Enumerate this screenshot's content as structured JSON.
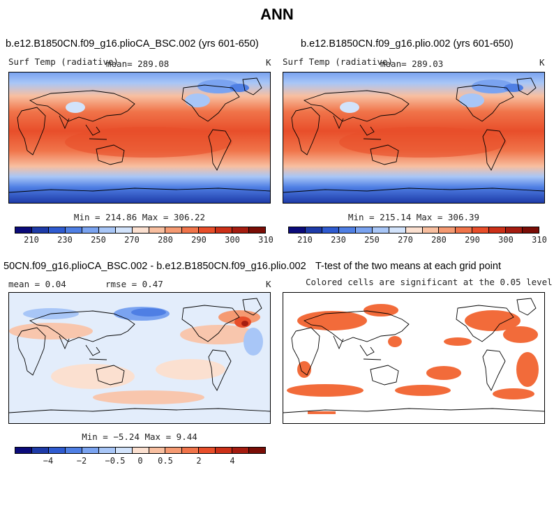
{
  "title": "ANN",
  "panels": [
    {
      "title": "b.e12.B1850CN.f09_g16.plioCA_BSC.002 (yrs 601-650)",
      "var_label": "Surf Temp (radiative)",
      "mean_label": "mean= 289.08",
      "units": "K",
      "minmax": "Min = 214.86 Max = 306.22",
      "colorbar": {
        "colors": [
          "#0b0b7a",
          "#1e3ba8",
          "#2f5bd0",
          "#4f7fe4",
          "#7aa3f0",
          "#a8c6f7",
          "#d2e3fb",
          "#fbe0d0",
          "#f8bfa0",
          "#f59a72",
          "#f0744a",
          "#e84e2a",
          "#cc3018",
          "#a51c10",
          "#7a0d06"
        ],
        "ticks": [
          "210",
          "230",
          "250",
          "270",
          "280",
          "290",
          "300",
          "310"
        ]
      }
    },
    {
      "title": "b.e12.B1850CN.f09_g16.plio.002 (yrs 601-650)",
      "var_label": "Surf Temp (radiative)",
      "mean_label": "mean= 289.03",
      "units": "K",
      "minmax": "Min = 215.14 Max = 306.39",
      "colorbar": {
        "colors": [
          "#0b0b7a",
          "#1e3ba8",
          "#2f5bd0",
          "#4f7fe4",
          "#7aa3f0",
          "#a8c6f7",
          "#d2e3fb",
          "#fbe0d0",
          "#f8bfa0",
          "#f59a72",
          "#f0744a",
          "#e84e2a",
          "#cc3018",
          "#a51c10",
          "#7a0d06"
        ],
        "ticks": [
          "210",
          "230",
          "250",
          "270",
          "280",
          "290",
          "300",
          "310"
        ]
      }
    },
    {
      "title": "50CN.f09_g16.plioCA_BSC.002 - b.e12.B1850CN.f09_g16.plio.002",
      "mean_label": "mean =    0.04",
      "rmse_label": "rmse =    0.47",
      "units": "K",
      "minmax": "Min = −5.24 Max =   9.44",
      "colorbar": {
        "colors": [
          "#0b0b7a",
          "#1e3ba8",
          "#2f5bd0",
          "#4f7fe4",
          "#7aa3f0",
          "#a8c6f7",
          "#d2e3fb",
          "#fbe0d0",
          "#f8bfa0",
          "#f59a72",
          "#f0744a",
          "#e84e2a",
          "#cc3018",
          "#a51c10",
          "#7a0d06"
        ],
        "ticks": [
          "−4",
          "−2",
          "−0.5",
          "0",
          "0.5",
          "2",
          "4"
        ]
      }
    },
    {
      "title": "T-test of the two means at each grid point",
      "subtitle": "Colored cells are significant at the 0.05 level",
      "sig_color": "#f26b3a"
    }
  ]
}
